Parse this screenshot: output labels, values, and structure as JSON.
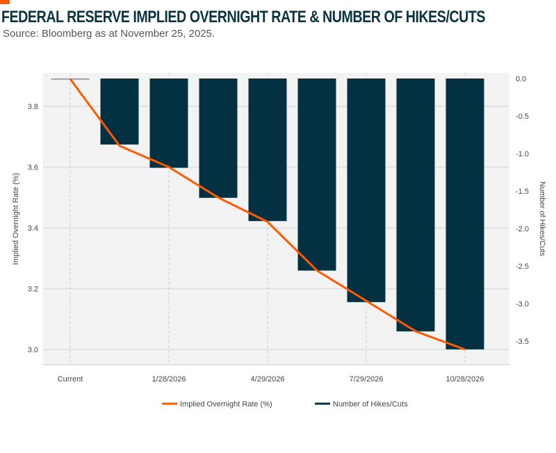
{
  "header": {
    "title": "FEDERAL RESERVE IMPLIED OVERNIGHT RATE & NUMBER OF HIKES/CUTS",
    "source": "Source: Bloomberg as at November 25, 2025."
  },
  "chart_data": {
    "type": "bar+line",
    "categories": [
      "Current",
      "",
      "1/28/2026",
      "",
      "4/29/2026",
      "",
      "7/29/2026",
      "",
      "10/28/2026"
    ],
    "series": [
      {
        "name": "Implied Overnight Rate (%)",
        "type": "line",
        "axis": "left",
        "color": "#ff5a00",
        "values": [
          3.89,
          3.67,
          3.6,
          3.5,
          3.42,
          3.26,
          3.16,
          3.06,
          3.0
        ]
      },
      {
        "name": "Number of Hikes/Cuts",
        "type": "bar",
        "axis": "right",
        "color": "#033141",
        "values": [
          0,
          -0.88,
          -1.19,
          -1.59,
          -1.9,
          -2.56,
          -2.98,
          -3.37,
          -3.61
        ]
      }
    ],
    "ylabel": "Implied Overnight Rate (%)",
    "y2label": "Number of Hikes/Cuts",
    "yticks": [
      "3.0",
      "3.2",
      "3.4",
      "3.6",
      "3.8"
    ],
    "y2ticks": [
      "0.0",
      "-0.5",
      "-1.0",
      "-1.5",
      "-2.0",
      "-2.5",
      "-3.0",
      "-3.5"
    ],
    "grid": true,
    "legend": "bottom"
  }
}
